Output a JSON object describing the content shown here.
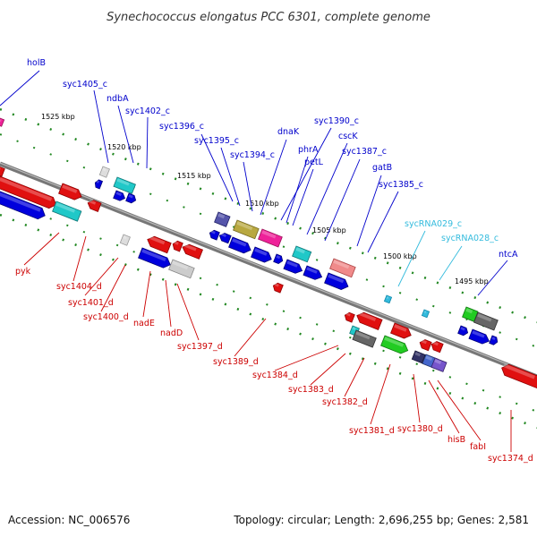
{
  "title": "Synechococcus elongatus PCC 6301, complete genome",
  "footer": {
    "accession": "Accession: NC_006576",
    "topology": "Topology: circular; Length: 2,696,255 bp; Genes: 2,581"
  },
  "colors": {
    "top_strand_labels": "#0000cc",
    "bottom_strand_labels": "#cc0000",
    "rna_labels": "#33bbdd",
    "backbone": "#777777",
    "tick": "#228822"
  },
  "kbp_marks": [
    "1525 kbp",
    "1520 kbp",
    "1515 kbp",
    "1510 kbp",
    "1505 kbp",
    "1500 kbp",
    "1495 kbp"
  ],
  "top_labels": [
    "holB",
    "syc1405_c",
    "ndbA",
    "syc1402_c",
    "syc1396_c",
    "syc1395_c",
    "syc1394_c",
    "dnaK",
    "syc1390_c",
    "phrA",
    "petL",
    "cscK",
    "syc1387_c",
    "gatB",
    "syc1385_c",
    "ntcA"
  ],
  "rna_labels": [
    "sycRNA029_c",
    "sycRNA028_c"
  ],
  "bottom_labels": [
    "pyk",
    "syc1404_d",
    "syc1401_d",
    "syc1400_d",
    "nadE",
    "nadD",
    "syc1397_d",
    "syc1389_d",
    "syc1384_d",
    "syc1383_d",
    "syc1382_d",
    "syc1381_d",
    "syc1380_d",
    "hisB",
    "fabI",
    "syc1374_d"
  ]
}
